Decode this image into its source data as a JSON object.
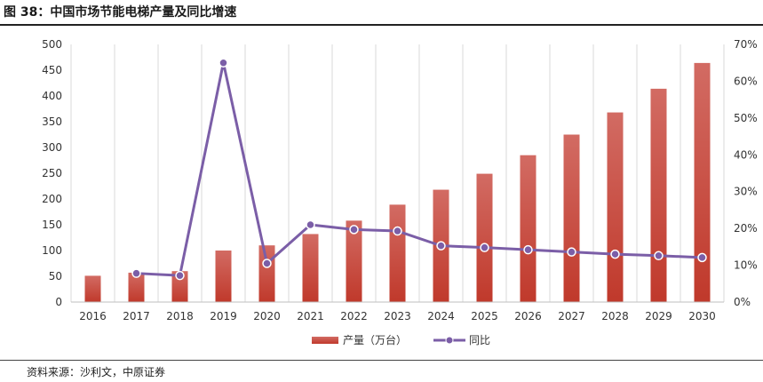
{
  "figure": {
    "title": "图 38：中国市场节能电梯产量及同比增速",
    "source": "资料来源：沙利文，中原证券"
  },
  "chart_data": {
    "type": "bar",
    "categories": [
      "2016",
      "2017",
      "2018",
      "2019",
      "2020",
      "2021",
      "2022",
      "2023",
      "2024",
      "2025",
      "2026",
      "2027",
      "2028",
      "2029",
      "2030"
    ],
    "series": [
      {
        "name": "产量（万台）",
        "type": "bar",
        "axis": "left",
        "color": "#c0392b",
        "values": [
          51,
          57,
          60,
          100,
          110,
          132,
          158,
          189,
          218,
          249,
          285,
          325,
          368,
          414,
          464
        ]
      },
      {
        "name": "同比",
        "type": "line",
        "axis": "right",
        "color": "#7b5ea7",
        "values": [
          null,
          7.8,
          7.2,
          65.0,
          10.5,
          21.0,
          19.7,
          19.3,
          15.3,
          14.8,
          14.2,
          13.6,
          13.0,
          12.6,
          12.1
        ]
      }
    ],
    "y_left": {
      "min": 0,
      "max": 500,
      "step": 50,
      "tick_labels": [
        "0",
        "50",
        "100",
        "150",
        "200",
        "250",
        "300",
        "350",
        "400",
        "450",
        "500"
      ]
    },
    "y_right": {
      "min": 0,
      "max": 70,
      "step": 10,
      "tick_labels": [
        "0%",
        "10%",
        "20%",
        "30%",
        "40%",
        "50%",
        "60%",
        "70%"
      ]
    },
    "grid": "vertical",
    "legend_position": "bottom-center"
  }
}
